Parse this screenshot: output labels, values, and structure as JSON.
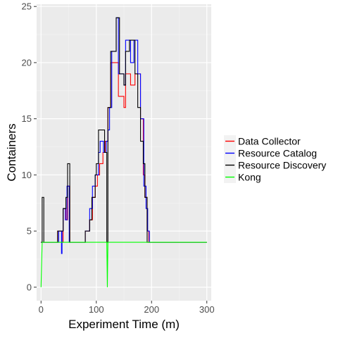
{
  "chart_data": {
    "type": "line",
    "title": "",
    "xlabel": "Experiment Time (m)",
    "ylabel": "Containers",
    "xlim": [
      -8,
      308
    ],
    "ylim": [
      -1.2,
      25.2
    ],
    "x_ticks": [
      0,
      100,
      200,
      300
    ],
    "y_ticks": [
      0,
      5,
      10,
      15,
      20,
      25
    ],
    "grid": true,
    "legend_position": "right",
    "series": [
      {
        "name": "Data Collector",
        "color": "#ff0000",
        "points": [
          [
            0,
            4
          ],
          [
            30,
            4
          ],
          [
            30,
            5
          ],
          [
            38,
            5
          ],
          [
            38,
            4
          ],
          [
            40,
            4
          ],
          [
            40,
            7
          ],
          [
            45,
            7
          ],
          [
            45,
            6
          ],
          [
            48,
            6
          ],
          [
            48,
            9
          ],
          [
            52,
            9
          ],
          [
            52,
            4
          ],
          [
            80,
            4
          ],
          [
            80,
            5
          ],
          [
            88,
            5
          ],
          [
            88,
            6
          ],
          [
            93,
            6
          ],
          [
            93,
            8
          ],
          [
            98,
            8
          ],
          [
            98,
            9
          ],
          [
            102,
            9
          ],
          [
            102,
            10
          ],
          [
            106,
            10
          ],
          [
            106,
            11
          ],
          [
            112,
            11
          ],
          [
            112,
            12
          ],
          [
            116,
            12
          ],
          [
            116,
            13
          ],
          [
            121,
            13
          ],
          [
            121,
            16
          ],
          [
            126,
            16
          ],
          [
            126,
            20
          ],
          [
            140,
            20
          ],
          [
            140,
            17
          ],
          [
            150,
            17
          ],
          [
            150,
            16
          ],
          [
            153,
            16
          ],
          [
            153,
            19
          ],
          [
            162,
            19
          ],
          [
            162,
            18
          ],
          [
            170,
            18
          ],
          [
            170,
            19
          ],
          [
            180,
            19
          ],
          [
            180,
            15
          ],
          [
            185,
            15
          ],
          [
            185,
            10
          ],
          [
            188,
            10
          ],
          [
            188,
            8
          ],
          [
            192,
            8
          ],
          [
            192,
            5
          ],
          [
            195,
            5
          ],
          [
            195,
            4
          ],
          [
            300,
            4
          ]
        ]
      },
      {
        "name": "Resource Catalog",
        "color": "#0000ff",
        "points": [
          [
            0,
            4
          ],
          [
            32,
            4
          ],
          [
            32,
            5
          ],
          [
            37,
            5
          ],
          [
            37,
            3
          ],
          [
            38,
            3
          ],
          [
            38,
            5
          ],
          [
            40,
            5
          ],
          [
            40,
            7
          ],
          [
            44,
            7
          ],
          [
            44,
            6
          ],
          [
            47,
            6
          ],
          [
            47,
            9
          ],
          [
            51,
            9
          ],
          [
            51,
            4
          ],
          [
            80,
            4
          ],
          [
            80,
            5
          ],
          [
            88,
            5
          ],
          [
            88,
            7
          ],
          [
            93,
            7
          ],
          [
            93,
            9
          ],
          [
            98,
            9
          ],
          [
            98,
            10
          ],
          [
            104,
            10
          ],
          [
            104,
            12
          ],
          [
            107,
            12
          ],
          [
            107,
            13
          ],
          [
            113,
            13
          ],
          [
            113,
            12
          ],
          [
            118,
            12
          ],
          [
            118,
            13
          ],
          [
            121,
            13
          ],
          [
            121,
            14
          ],
          [
            124,
            14
          ],
          [
            124,
            16
          ],
          [
            128,
            16
          ],
          [
            128,
            21
          ],
          [
            136,
            21
          ],
          [
            136,
            24
          ],
          [
            140,
            24
          ],
          [
            140,
            19
          ],
          [
            150,
            19
          ],
          [
            150,
            18
          ],
          [
            153,
            18
          ],
          [
            153,
            22
          ],
          [
            162,
            22
          ],
          [
            162,
            20
          ],
          [
            168,
            20
          ],
          [
            168,
            22
          ],
          [
            175,
            22
          ],
          [
            175,
            19
          ],
          [
            180,
            19
          ],
          [
            180,
            15
          ],
          [
            186,
            15
          ],
          [
            186,
            9
          ],
          [
            190,
            9
          ],
          [
            190,
            7
          ],
          [
            193,
            7
          ],
          [
            193,
            5
          ],
          [
            196,
            5
          ],
          [
            196,
            4
          ],
          [
            300,
            4
          ]
        ]
      },
      {
        "name": "Resource Discovery",
        "color": "#000000",
        "points": [
          [
            0,
            4
          ],
          [
            2,
            4
          ],
          [
            2,
            8
          ],
          [
            5,
            8
          ],
          [
            5,
            4
          ],
          [
            30,
            4
          ],
          [
            30,
            5
          ],
          [
            40,
            5
          ],
          [
            40,
            7
          ],
          [
            45,
            7
          ],
          [
            45,
            8
          ],
          [
            48,
            8
          ],
          [
            48,
            11
          ],
          [
            52,
            11
          ],
          [
            52,
            4
          ],
          [
            80,
            4
          ],
          [
            80,
            5
          ],
          [
            88,
            5
          ],
          [
            88,
            6
          ],
          [
            92,
            6
          ],
          [
            92,
            8
          ],
          [
            98,
            8
          ],
          [
            98,
            10
          ],
          [
            100,
            10
          ],
          [
            100,
            11
          ],
          [
            104,
            11
          ],
          [
            104,
            14
          ],
          [
            115,
            14
          ],
          [
            115,
            12
          ],
          [
            119,
            12
          ],
          [
            119,
            4
          ],
          [
            121,
            4
          ],
          [
            121,
            16
          ],
          [
            126,
            16
          ],
          [
            126,
            21
          ],
          [
            136,
            21
          ],
          [
            136,
            24
          ],
          [
            142,
            24
          ],
          [
            142,
            19
          ],
          [
            150,
            19
          ],
          [
            150,
            18
          ],
          [
            153,
            18
          ],
          [
            153,
            21
          ],
          [
            160,
            21
          ],
          [
            160,
            22
          ],
          [
            170,
            22
          ],
          [
            170,
            19
          ],
          [
            175,
            19
          ],
          [
            175,
            16
          ],
          [
            180,
            16
          ],
          [
            180,
            13
          ],
          [
            185,
            13
          ],
          [
            185,
            11
          ],
          [
            188,
            11
          ],
          [
            188,
            8
          ],
          [
            192,
            8
          ],
          [
            192,
            4
          ],
          [
            300,
            4
          ]
        ]
      },
      {
        "name": "Kong",
        "color": "#00ff00",
        "points": [
          [
            0,
            0
          ],
          [
            2,
            4
          ],
          [
            119,
            4
          ],
          [
            120,
            0
          ],
          [
            121,
            4
          ],
          [
            300,
            4
          ]
        ]
      }
    ]
  }
}
